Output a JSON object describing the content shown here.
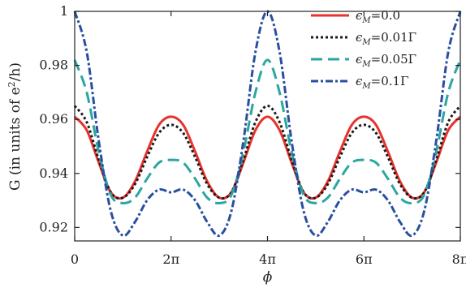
{
  "chart_data": {
    "type": "line",
    "xlabel": "ϕ",
    "ylabel_prefix": "G (in units of e",
    "ylabel_sup": "2",
    "ylabel_suffix": "/h)",
    "xlim": [
      0,
      25.1327
    ],
    "ylim": [
      0.915,
      1.0
    ],
    "x_ticks": [
      {
        "value": 0,
        "label": "0"
      },
      {
        "value": 6.2832,
        "label": "2π"
      },
      {
        "value": 12.5664,
        "label": "4π"
      },
      {
        "value": 18.8496,
        "label": "6π"
      },
      {
        "value": 25.1327,
        "label": "8π"
      }
    ],
    "y_ticks": [
      {
        "value": 0.92,
        "label": "0.92"
      },
      {
        "value": 0.94,
        "label": "0.94"
      },
      {
        "value": 0.96,
        "label": "0.96"
      },
      {
        "value": 0.98,
        "label": "0.98"
      },
      {
        "value": 1.0,
        "label": "1"
      }
    ],
    "grid": false,
    "legend_position": "top-right",
    "legend_entries": [
      {
        "label_base": "ϵ",
        "label_sub": "M",
        "label_rest": "=0.0"
      },
      {
        "label_base": "ϵ",
        "label_sub": "M",
        "label_rest": "=0.01Γ"
      },
      {
        "label_base": "ϵ",
        "label_sub": "M",
        "label_rest": "=0.05Γ"
      },
      {
        "label_base": "ϵ",
        "label_sub": "M",
        "label_rest": "=0.1Γ"
      }
    ],
    "series": [
      {
        "color": "#e8322e",
        "dash": "",
        "width": 3,
        "x": [
          0,
          0.785,
          1.571,
          2.356,
          3.142,
          3.927,
          4.712,
          5.498,
          6.283,
          7.069,
          7.854,
          8.639,
          9.425,
          10.21,
          10.996,
          11.781,
          12.566,
          13.352,
          14.137,
          14.923,
          15.708,
          16.493,
          17.279,
          18.064,
          18.85,
          19.635,
          20.42,
          21.206,
          21.991,
          22.777,
          23.562,
          24.347,
          25.133
        ],
        "y": [
          0.961,
          0.956,
          0.944,
          0.933,
          0.931,
          0.937,
          0.948,
          0.958,
          0.961,
          0.958,
          0.948,
          0.937,
          0.931,
          0.933,
          0.944,
          0.956,
          0.961,
          0.956,
          0.944,
          0.933,
          0.931,
          0.937,
          0.948,
          0.958,
          0.961,
          0.958,
          0.948,
          0.937,
          0.931,
          0.933,
          0.944,
          0.956,
          0.961
        ]
      },
      {
        "color": "#1a1a1a",
        "dash": "3,3",
        "width": 3,
        "x": [
          0,
          0.785,
          1.571,
          2.356,
          3.142,
          3.927,
          4.712,
          5.498,
          6.283,
          7.069,
          7.854,
          8.639,
          9.425,
          10.21,
          10.996,
          11.781,
          12.566,
          13.352,
          14.137,
          14.923,
          15.708,
          16.493,
          17.279,
          18.064,
          18.85,
          19.635,
          20.42,
          21.206,
          21.991,
          22.777,
          23.562,
          24.347,
          25.133
        ],
        "y": [
          0.965,
          0.959,
          0.945,
          0.933,
          0.931,
          0.936,
          0.946,
          0.955,
          0.958,
          0.955,
          0.946,
          0.936,
          0.931,
          0.933,
          0.945,
          0.959,
          0.965,
          0.959,
          0.945,
          0.933,
          0.931,
          0.936,
          0.946,
          0.955,
          0.958,
          0.955,
          0.946,
          0.936,
          0.931,
          0.933,
          0.945,
          0.959,
          0.965
        ]
      },
      {
        "color": "#2aa7a0",
        "dash": "14,7",
        "width": 3,
        "x": [
          0,
          0.785,
          1.571,
          2.356,
          3.142,
          3.927,
          4.712,
          5.498,
          6.283,
          7.069,
          7.854,
          8.639,
          9.425,
          10.21,
          10.996,
          11.781,
          12.566,
          13.352,
          14.137,
          14.923,
          15.708,
          16.493,
          17.279,
          18.064,
          18.85,
          19.635,
          20.42,
          21.206,
          21.991,
          22.777,
          23.562,
          24.347,
          25.133
        ],
        "y": [
          0.982,
          0.97,
          0.948,
          0.932,
          0.929,
          0.931,
          0.938,
          0.944,
          0.945,
          0.944,
          0.938,
          0.931,
          0.929,
          0.932,
          0.948,
          0.97,
          0.982,
          0.97,
          0.948,
          0.932,
          0.929,
          0.931,
          0.938,
          0.944,
          0.945,
          0.944,
          0.938,
          0.931,
          0.929,
          0.932,
          0.948,
          0.97,
          0.982
        ]
      },
      {
        "color": "#2a4fa0",
        "dash": "9,3,3,3",
        "width": 3,
        "x": [
          0,
          0.785,
          1.571,
          2.356,
          3.142,
          3.927,
          4.712,
          5.498,
          6.283,
          7.069,
          7.854,
          8.639,
          9.425,
          10.21,
          10.996,
          11.781,
          12.566,
          13.352,
          14.137,
          14.923,
          15.708,
          16.493,
          17.279,
          18.064,
          18.85,
          19.635,
          20.42,
          21.206,
          21.991,
          22.777,
          23.562,
          24.347,
          25.133
        ],
        "y": [
          1.0,
          0.985,
          0.952,
          0.926,
          0.917,
          0.922,
          0.93,
          0.934,
          0.933,
          0.934,
          0.93,
          0.922,
          0.917,
          0.926,
          0.952,
          0.985,
          1.0,
          0.985,
          0.952,
          0.926,
          0.917,
          0.922,
          0.93,
          0.934,
          0.933,
          0.934,
          0.93,
          0.922,
          0.917,
          0.926,
          0.952,
          0.985,
          1.0
        ]
      }
    ]
  }
}
